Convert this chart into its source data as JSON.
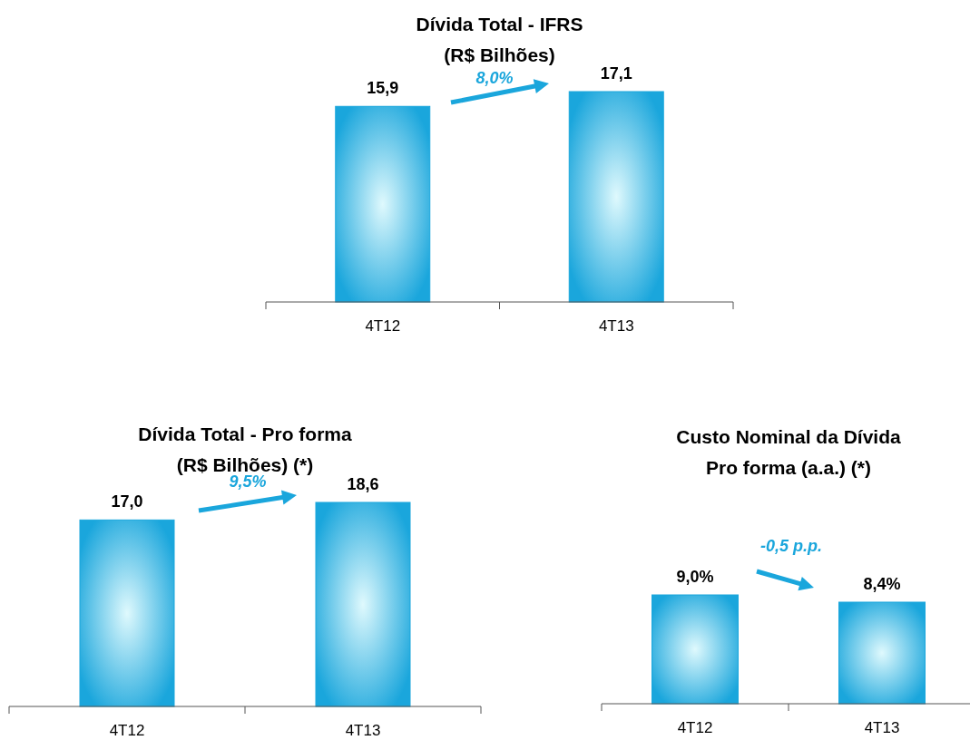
{
  "chart_data": [
    {
      "type": "bar",
      "title": "Dívida Total - IFRS\n(R$ Bilhões)",
      "categories": [
        "4T12",
        "4T13"
      ],
      "values": [
        15.9,
        17.1
      ],
      "value_labels": [
        "15,9",
        "17,1"
      ],
      "color": "#1aa6dc",
      "annotations": [
        "8,0%"
      ]
    },
    {
      "type": "bar",
      "title": "Dívida Total - Pro forma\n(R$ Bilhões) (*)",
      "categories": [
        "4T12",
        "4T13"
      ],
      "values": [
        17.0,
        18.6
      ],
      "value_labels": [
        "17,0",
        "18,6"
      ],
      "color": "#1aa6dc",
      "annotations": [
        "9,5%"
      ]
    },
    {
      "type": "bar",
      "title": "Custo Nominal da Dívida\nPro forma (a.a.) (*)",
      "categories": [
        "4T12",
        "4T13"
      ],
      "values": [
        9.0,
        8.4
      ],
      "value_labels": [
        "9,0%",
        "8,4%"
      ],
      "color": "#1aa6dc",
      "annotations": [
        "-0,5 p.p."
      ]
    }
  ]
}
